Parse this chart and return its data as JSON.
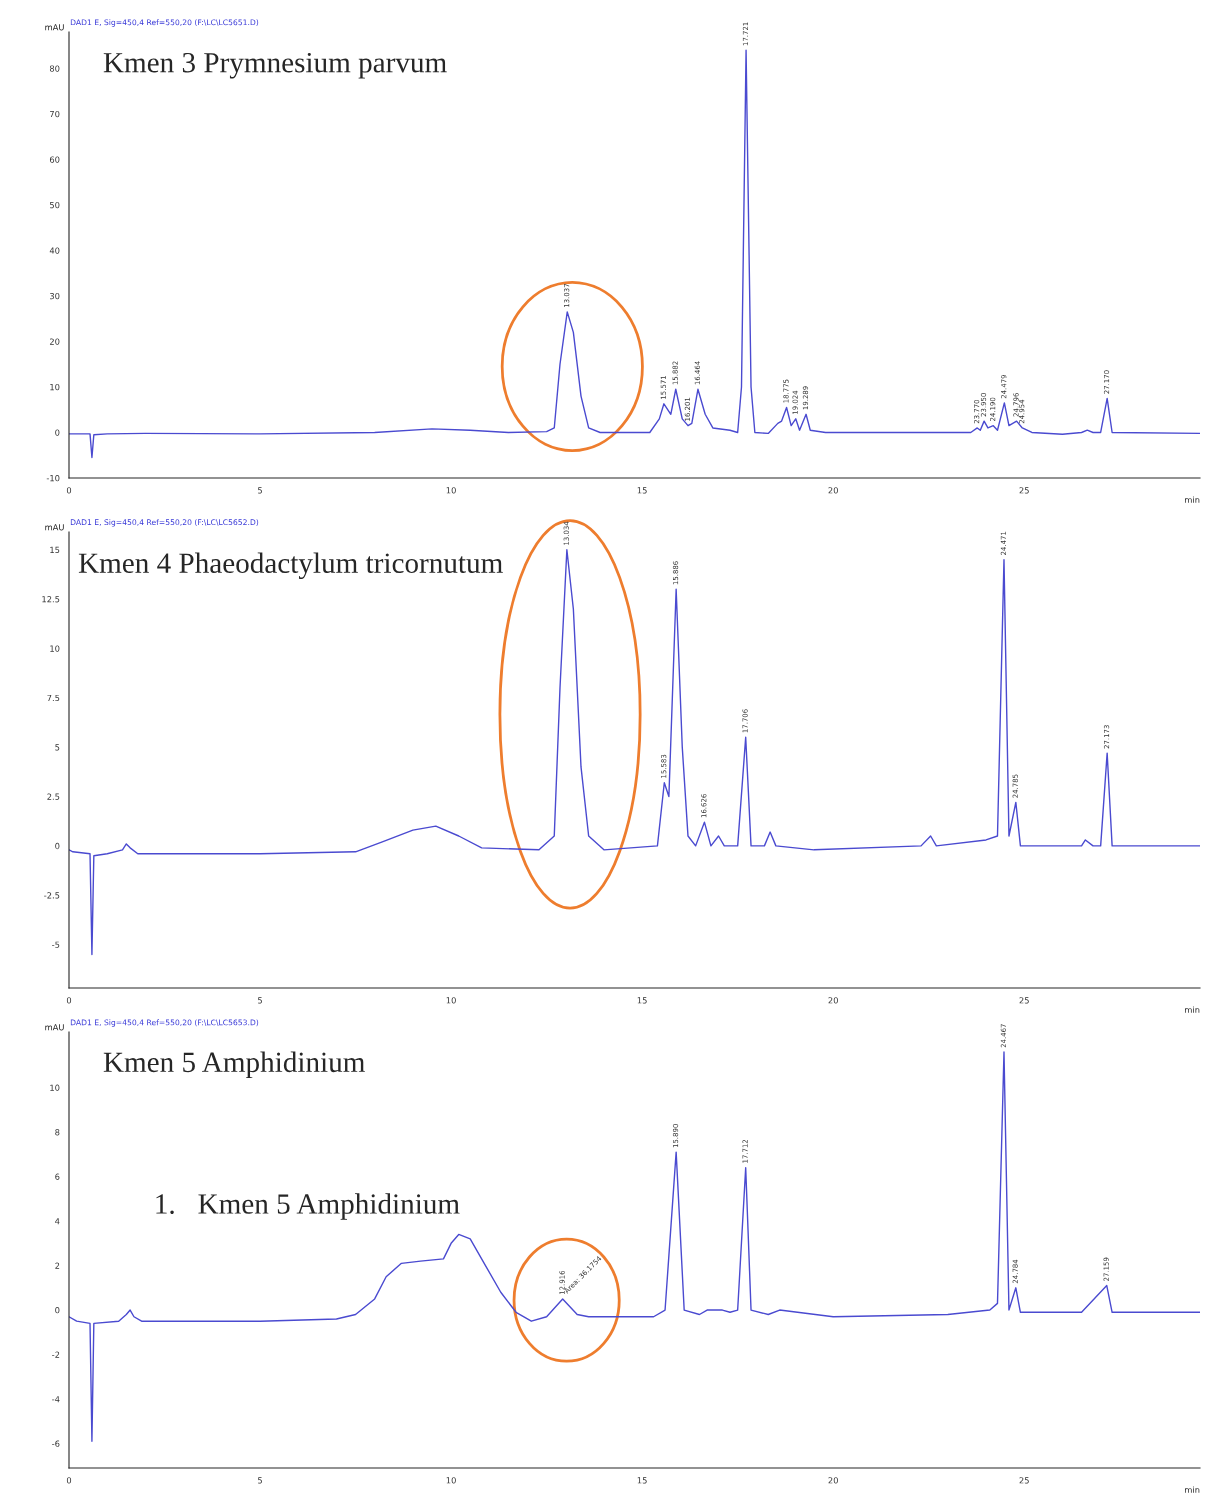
{
  "chart_data": [
    {
      "type": "line",
      "subtitle": "DAD1 E, Sig=450,4 Ref=550,20 (F:\\LC\\LC5651.D)",
      "title": "Kmen 3 Prymnesium parvum",
      "ylabel": "mAU",
      "xlabel": "min",
      "x": [
        0,
        0.55,
        0.6,
        0.65,
        1.0,
        2.0,
        5,
        8,
        9.5,
        10.5,
        11.5,
        12.5,
        12.7,
        12.85,
        13.04,
        13.2,
        13.4,
        13.6,
        13.9,
        15.2,
        15.45,
        15.57,
        15.75,
        15.88,
        16.05,
        16.2,
        16.3,
        16.46,
        16.65,
        16.85,
        17.3,
        17.5,
        17.6,
        17.72,
        17.85,
        17.95,
        18.3,
        18.55,
        18.65,
        18.78,
        18.9,
        19.02,
        19.12,
        19.29,
        19.4,
        19.8,
        23.6,
        23.77,
        23.85,
        23.95,
        24.05,
        24.19,
        24.3,
        24.48,
        24.6,
        24.8,
        24.95,
        25.2,
        26,
        26.5,
        26.65,
        26.8,
        27.0,
        27.17,
        27.3,
        29.6
      ],
      "series": [
        {
          "color": "#4a4ad0",
          "values": [
            -0.3,
            -0.3,
            -5.5,
            -0.5,
            -0.3,
            -0.2,
            -0.3,
            0,
            0.8,
            0.5,
            0,
            0.2,
            1,
            15,
            26.5,
            22,
            8,
            1,
            0,
            0,
            3,
            6.3,
            4,
            9.5,
            3,
            1.5,
            2,
            9.5,
            4,
            1,
            0.5,
            0,
            10,
            84,
            10,
            0,
            -0.2,
            2,
            2.5,
            5.5,
            1.5,
            3,
            0.5,
            4,
            0.5,
            0,
            0,
            1,
            0.5,
            2.5,
            1,
            1.5,
            0.5,
            6.5,
            1.5,
            2.5,
            1,
            0,
            -0.4,
            0,
            0.5,
            0,
            0,
            7.5,
            0,
            -0.2
          ]
        }
      ],
      "xlim": [
        0,
        29.6
      ],
      "ylim": [
        -10,
        88
      ],
      "xticks": [
        0,
        5,
        10,
        15,
        20,
        25
      ],
      "yticks": [
        -10,
        0,
        10,
        20,
        30,
        40,
        50,
        60,
        70,
        80
      ],
      "annotations": [
        {
          "text": "13.037",
          "x": 13.04,
          "y": 26.5
        },
        {
          "text": "15.571",
          "x": 15.57,
          "y": 6.3
        },
        {
          "text": "15.882",
          "x": 15.88,
          "y": 9.5
        },
        {
          "text": "16.201",
          "x": 16.2,
          "y": 1.5
        },
        {
          "text": "16.464",
          "x": 16.46,
          "y": 9.5
        },
        {
          "text": "17.721",
          "x": 17.72,
          "y": 84
        },
        {
          "text": "18.775",
          "x": 18.78,
          "y": 5.5
        },
        {
          "text": "19.024",
          "x": 19.02,
          "y": 3
        },
        {
          "text": "19.289",
          "x": 19.29,
          "y": 4
        },
        {
          "text": "23.770",
          "x": 23.77,
          "y": 1
        },
        {
          "text": "23.950",
          "x": 23.95,
          "y": 2.5
        },
        {
          "text": "24.190",
          "x": 24.19,
          "y": 1.5
        },
        {
          "text": "24.479",
          "x": 24.48,
          "y": 6.5
        },
        {
          "text": "24.796",
          "x": 24.8,
          "y": 2.5
        },
        {
          "text": "24.954",
          "x": 24.95,
          "y": 1
        },
        {
          "text": "27.170",
          "x": 27.17,
          "y": 7.5
        }
      ]
    },
    {
      "type": "line",
      "subtitle": "DAD1 E, Sig=450,4 Ref=550,20 (F:\\LC\\LC5652.D)",
      "title": "Kmen 4 Phaeodactylum tricornutum",
      "ylabel": "mAU",
      "xlabel": "min",
      "x": [
        0,
        0.1,
        0.55,
        0.6,
        0.65,
        1.0,
        1.4,
        1.5,
        1.6,
        1.8,
        5,
        7.5,
        8.2,
        9,
        9.6,
        10.2,
        10.8,
        12.3,
        12.7,
        12.85,
        13.03,
        13.2,
        13.4,
        13.6,
        14,
        15.4,
        15.58,
        15.7,
        15.89,
        16.05,
        16.2,
        16.4,
        16.63,
        16.8,
        17.0,
        17.15,
        17.5,
        17.71,
        17.85,
        18.2,
        18.35,
        18.5,
        19.5,
        22.3,
        22.55,
        22.7,
        24.0,
        24.3,
        24.47,
        24.6,
        24.78,
        24.9,
        26.5,
        26.6,
        26.8,
        27.0,
        27.17,
        27.3,
        29.6
      ],
      "series": [
        {
          "color": "#4a4ad0",
          "values": [
            -0.2,
            -0.3,
            -0.4,
            -5.5,
            -0.5,
            -0.4,
            -0.2,
            0.1,
            -0.1,
            -0.4,
            -0.4,
            -0.3,
            0.2,
            0.8,
            1.0,
            0.5,
            -0.1,
            -0.2,
            0.5,
            8,
            15,
            12,
            4,
            0.5,
            -0.2,
            0,
            3.2,
            2.5,
            13,
            5,
            0.5,
            0,
            1.2,
            0,
            0.5,
            0,
            0,
            5.5,
            0,
            0,
            0.7,
            0,
            -0.2,
            0,
            0.5,
            0,
            0.3,
            0.5,
            14.5,
            0.5,
            2.2,
            0,
            0,
            0.3,
            0,
            0,
            4.7,
            0,
            0
          ]
        }
      ],
      "xlim": [
        0,
        29.6
      ],
      "ylim": [
        -7.2,
        15.9
      ],
      "xticks": [
        0,
        5,
        10,
        15,
        20,
        25
      ],
      "yticks": [
        -5,
        -2.5,
        0,
        2.5,
        5,
        7.5,
        10,
        12.5,
        15
      ],
      "annotations": [
        {
          "text": "13.034",
          "x": 13.03,
          "y": 15
        },
        {
          "text": "15.583",
          "x": 15.58,
          "y": 3.2
        },
        {
          "text": "15.886",
          "x": 15.89,
          "y": 13
        },
        {
          "text": "16.626",
          "x": 16.63,
          "y": 1.2
        },
        {
          "text": "17.706",
          "x": 17.71,
          "y": 5.5
        },
        {
          "text": "24.471",
          "x": 24.47,
          "y": 14.5
        },
        {
          "text": "24.785",
          "x": 24.78,
          "y": 2.2
        },
        {
          "text": "27.173",
          "x": 27.17,
          "y": 4.7
        }
      ]
    },
    {
      "type": "line",
      "subtitle": "DAD1 E, Sig=450,4 Ref=550,20 (F:\\LC\\LC5653.D)",
      "title": "Kmen 5 Amphidinium",
      "ylabel": "mAU",
      "xlabel": "min",
      "x": [
        0,
        0.2,
        0.55,
        0.6,
        0.65,
        1.3,
        1.5,
        1.6,
        1.7,
        1.9,
        5,
        7,
        7.5,
        8,
        8.3,
        8.7,
        9.2,
        9.8,
        10.0,
        10.2,
        10.5,
        10.9,
        11.3,
        11.7,
        12.1,
        12.5,
        12.92,
        13.3,
        13.6,
        15.3,
        15.6,
        15.89,
        16.1,
        16.5,
        16.7,
        17.1,
        17.3,
        17.5,
        17.71,
        17.85,
        18.3,
        18.6,
        20,
        23,
        24.1,
        24.3,
        24.47,
        24.6,
        24.78,
        24.9,
        26.5,
        27.16,
        27.3,
        29.6
      ],
      "series": [
        {
          "color": "#4a4ad0",
          "values": [
            -0.3,
            -0.5,
            -0.6,
            -5.9,
            -0.6,
            -0.5,
            -0.2,
            0,
            -0.3,
            -0.5,
            -0.5,
            -0.4,
            -0.2,
            0.5,
            1.5,
            2.1,
            2.2,
            2.3,
            3.0,
            3.4,
            3.2,
            2.0,
            0.8,
            -0.1,
            -0.5,
            -0.3,
            0.5,
            -0.2,
            -0.3,
            -0.3,
            0,
            7.1,
            0,
            -0.2,
            0,
            0,
            -0.1,
            0,
            6.4,
            0,
            -0.2,
            0,
            -0.3,
            -0.2,
            0,
            0.3,
            11.6,
            0,
            1.0,
            -0.1,
            -0.1,
            1.1,
            -0.1,
            -0.1
          ]
        }
      ],
      "xlim": [
        0,
        29.6
      ],
      "ylim": [
        -7.1,
        12.5
      ],
      "xticks": [
        0,
        5,
        10,
        15,
        20,
        25
      ],
      "yticks": [
        -6,
        -4,
        -2,
        0,
        2,
        4,
        6,
        8,
        10
      ],
      "annotations": [
        "1.   Kmen 5 Amphidinium",
        {
          "text": "12.916",
          "x": 12.92,
          "y": 0.5
        },
        {
          "text": "Area: 36.1754",
          "x": 12.92,
          "y": 0.5
        },
        {
          "text": "15.890",
          "x": 15.89,
          "y": 7.1
        },
        {
          "text": "17.712",
          "x": 17.71,
          "y": 6.4
        },
        {
          "text": "24.467",
          "x": 24.47,
          "y": 11.6
        },
        {
          "text": "24.784",
          "x": 24.78,
          "y": 1.0
        },
        {
          "text": "27.159",
          "x": 27.16,
          "y": 1.1
        }
      ]
    }
  ]
}
